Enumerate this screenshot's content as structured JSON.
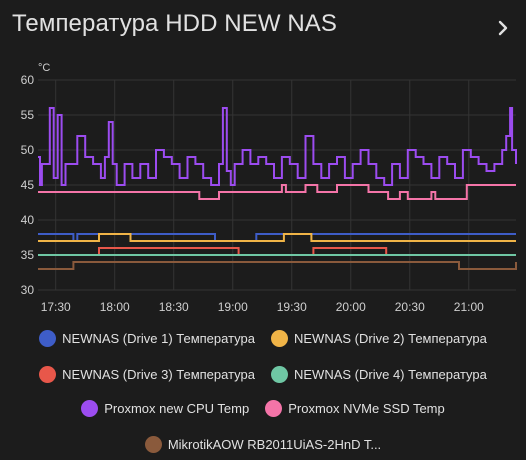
{
  "card": {
    "title": "Температура HDD NEW NAS"
  },
  "chart_data": {
    "type": "line",
    "title": "",
    "ylabel": "°C",
    "ylim": [
      30,
      60
    ],
    "yticks": [
      "60",
      "55",
      "50",
      "45",
      "40",
      "35",
      "30"
    ],
    "xticks": [
      "17:30",
      "18:00",
      "18:30",
      "19:00",
      "19:30",
      "20:00",
      "20:30",
      "21:00"
    ],
    "x_start": "17:21",
    "x_end": "21:24",
    "step_lines": true,
    "grid": true,
    "legend_position": "bottom",
    "series": [
      {
        "name": "NEWNAS (Drive 1) Температура",
        "color": "#3e5dc8",
        "t": [
          "17:21",
          "17:31",
          "17:39",
          "17:41",
          "18:10",
          "18:51",
          "19:09",
          "19:12",
          "21:24"
        ],
        "v": [
          38,
          38,
          37,
          38,
          38,
          37,
          37,
          38,
          38
        ]
      },
      {
        "name": "NEWNAS (Drive 2) Температура",
        "color": "#f0b447",
        "t": [
          "17:21",
          "17:51",
          "17:52",
          "18:08",
          "19:12",
          "19:23",
          "19:26",
          "19:40",
          "21:24"
        ],
        "v": [
          37,
          37,
          38,
          37,
          37,
          37,
          38,
          37,
          37
        ]
      },
      {
        "name": "NEWNAS (Drive 3) Температура",
        "color": "#e8574a",
        "t": [
          "17:21",
          "17:52",
          "18:52",
          "19:03",
          "19:41",
          "20:18",
          "21:24"
        ],
        "v": [
          35,
          36,
          36,
          35,
          36,
          35,
          35
        ]
      },
      {
        "name": "NEWNAS (Drive 4) Температура",
        "color": "#6fc7a4",
        "t": [
          "17:21",
          "21:24"
        ],
        "v": [
          35,
          35
        ]
      },
      {
        "name": "Proxmox new CPU Temp",
        "color": "#9c4cf0",
        "t": [
          "17:21",
          "17:22",
          "17:23",
          "17:27",
          "17:29",
          "17:31",
          "17:33",
          "17:35",
          "17:37",
          "17:41",
          "17:45",
          "17:49",
          "17:53",
          "17:55",
          "17:57",
          "17:59",
          "18:01",
          "18:05",
          "18:09",
          "18:13",
          "18:17",
          "18:21",
          "18:25",
          "18:29",
          "18:33",
          "18:37",
          "18:41",
          "18:45",
          "18:49",
          "18:53",
          "18:55",
          "18:57",
          "18:59",
          "19:01",
          "19:05",
          "19:09",
          "19:13",
          "19:17",
          "19:21",
          "19:25",
          "19:29",
          "19:33",
          "19:37",
          "19:41",
          "19:45",
          "19:49",
          "19:53",
          "19:57",
          "20:01",
          "20:05",
          "20:09",
          "20:13",
          "20:17",
          "20:21",
          "20:25",
          "20:29",
          "20:33",
          "20:37",
          "20:41",
          "20:45",
          "20:49",
          "20:53",
          "20:57",
          "21:01",
          "21:05",
          "21:09",
          "21:13",
          "21:17",
          "21:19",
          "21:21",
          "21:22",
          "21:24"
        ],
        "v": [
          49,
          45,
          48,
          56,
          46,
          55,
          45,
          48,
          48,
          52,
          49,
          48,
          46,
          49,
          54,
          48,
          45,
          48,
          46,
          48,
          46,
          50,
          49,
          48,
          46,
          49,
          48,
          46,
          45,
          48,
          56,
          47,
          45,
          48,
          50,
          48,
          49,
          48,
          46,
          49,
          48,
          46,
          52,
          48,
          46,
          48,
          49,
          46,
          48,
          50,
          48,
          46,
          45,
          48,
          46,
          50,
          49,
          48,
          46,
          49,
          48,
          46,
          50,
          49,
          48,
          47,
          48,
          50,
          52,
          56,
          50,
          48
        ]
      },
      {
        "name": "Proxmox NVMe SSD Temp",
        "color": "#f474a8",
        "t": [
          "17:21",
          "18:41",
          "18:43",
          "18:53",
          "19:25",
          "19:27",
          "19:37",
          "19:43",
          "19:53",
          "20:09",
          "20:17",
          "20:19",
          "20:25",
          "20:29",
          "20:41",
          "20:43",
          "20:59",
          "21:24"
        ],
        "v": [
          44,
          44,
          43,
          44,
          45,
          44,
          45,
          44,
          45,
          44,
          44,
          43,
          44,
          43,
          44,
          43,
          45,
          45
        ]
      },
      {
        "name": "MikrotikAOW RB2011UiAS-2HnD T...",
        "color": "#8a5a3c",
        "t": [
          "17:21",
          "17:39",
          "20:39",
          "20:55",
          "21:24"
        ],
        "v": [
          33,
          34,
          34,
          33,
          34
        ]
      }
    ]
  }
}
